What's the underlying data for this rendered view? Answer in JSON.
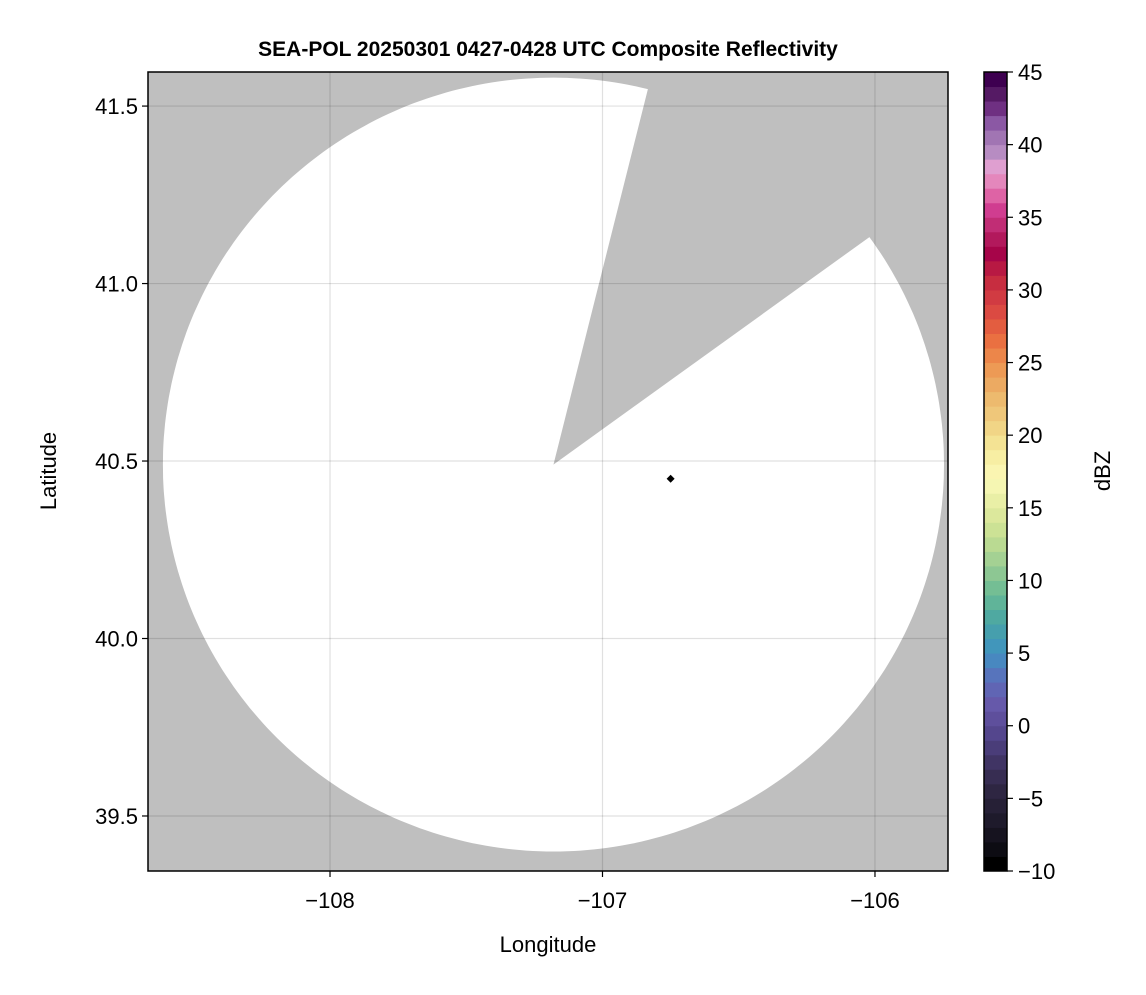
{
  "chart_data": {
    "type": "heatmap",
    "title": "SEA-POL 20250301 0427-0428 UTC Composite Reflectivity",
    "xlabel": "Longitude",
    "ylabel": "Latitude",
    "xlim": [
      -108.668,
      -105.732
    ],
    "ylim": [
      39.345,
      41.596
    ],
    "xticks": [
      -108,
      -107,
      -106
    ],
    "xtick_labels": [
      "−108",
      "−107",
      "−106"
    ],
    "yticks": [
      39.5,
      40.0,
      40.5,
      41.0,
      41.5
    ],
    "ytick_labels": [
      "39.5",
      "40.0",
      "40.5",
      "41.0",
      "41.5"
    ],
    "grid": true,
    "background_color": "#bfbfbf",
    "no_echo_color": "#ffffff",
    "radar_coverage": {
      "center_lon": -107.18,
      "center_lat": 40.49,
      "max_range_km": 121,
      "blocked_sector_azimuth_deg": [
        14,
        54
      ]
    },
    "marker": {
      "lon": -106.75,
      "lat": 40.45,
      "shape": "diamond",
      "color": "#000000"
    },
    "colorbar": {
      "label": "dBZ",
      "range": [
        -10,
        45
      ],
      "bin_width": 1,
      "ticks": [
        -10,
        -5,
        0,
        5,
        10,
        15,
        20,
        25,
        30,
        35,
        40,
        45
      ],
      "tick_labels": [
        "−10",
        "−5",
        "0",
        "5",
        "10",
        "15",
        "20",
        "25",
        "30",
        "35",
        "40",
        "45"
      ],
      "colormap_stops": [
        [
          -10,
          "#000000"
        ],
        [
          -9,
          "#0d0c13"
        ],
        [
          -7,
          "#1e1a2a"
        ],
        [
          -5,
          "#2d2540"
        ],
        [
          -3,
          "#3f3361"
        ],
        [
          -1,
          "#52458a"
        ],
        [
          1,
          "#6756a8"
        ],
        [
          3,
          "#5b6fbb"
        ],
        [
          4,
          "#4b84c0"
        ],
        [
          5,
          "#3f93bf"
        ],
        [
          7,
          "#4aa6a3"
        ],
        [
          9,
          "#6bbb94"
        ],
        [
          11,
          "#9ccd93"
        ],
        [
          13,
          "#c6df92"
        ],
        [
          15,
          "#e4eca0"
        ],
        [
          17,
          "#fbf9b8"
        ],
        [
          19,
          "#f6ea9c"
        ],
        [
          21,
          "#f0cf80"
        ],
        [
          23,
          "#ecb46a"
        ],
        [
          25,
          "#ed9450"
        ],
        [
          27,
          "#e9693e"
        ],
        [
          29,
          "#d84543"
        ],
        [
          31,
          "#c5293f"
        ],
        [
          33,
          "#a2004a"
        ],
        [
          34,
          "#b62060"
        ],
        [
          36,
          "#d24094"
        ],
        [
          37,
          "#e069a8"
        ],
        [
          38,
          "#e58bbf"
        ],
        [
          39,
          "#dea2d2"
        ],
        [
          40,
          "#b38ac0"
        ],
        [
          41,
          "#a073b2"
        ],
        [
          42,
          "#8a56a3"
        ],
        [
          43,
          "#6e2f81"
        ],
        [
          44,
          "#551a63"
        ],
        [
          45,
          "#3e0050"
        ]
      ]
    }
  }
}
